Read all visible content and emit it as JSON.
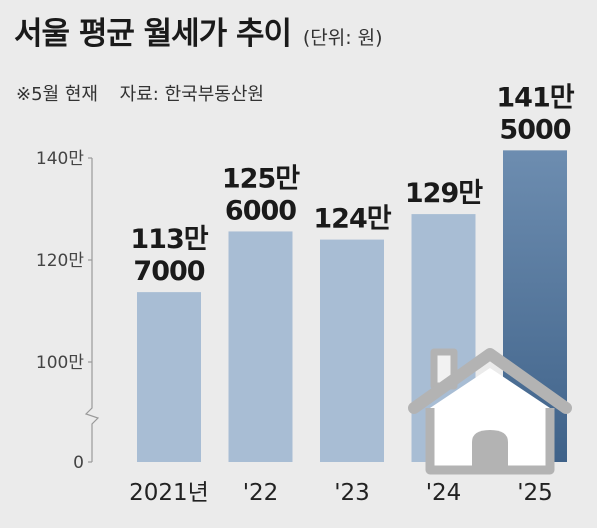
{
  "header": {
    "title": "서울 평균 월세가 추이",
    "unit": "(단위: 원)",
    "note": "※5월 현재",
    "source": "자료: 한국부동산원"
  },
  "chart_data": {
    "type": "bar",
    "categories": [
      "2021년",
      "'22",
      "'23",
      "'24",
      "'25"
    ],
    "values": [
      1137000,
      1256000,
      1240000,
      1290000,
      1415000
    ],
    "value_labels": [
      [
        "113만",
        "7000"
      ],
      [
        "125만",
        "6000"
      ],
      [
        "124만"
      ],
      [
        "129만"
      ],
      [
        "141만",
        "5000"
      ]
    ],
    "yticks": [
      {
        "value": 0,
        "label": "0"
      },
      {
        "value": 1000000,
        "label": "100만"
      },
      {
        "value": 1200000,
        "label": "120만"
      },
      {
        "value": 1400000,
        "label": "140만"
      }
    ],
    "axis_break": true,
    "colors": {
      "bar": "#a8bdd4",
      "bar_highlight_top": "#6d8db0",
      "bar_highlight_bottom": "#3f6289",
      "axis": "#999999",
      "house": "#b3b3b3"
    },
    "icon": "house-icon"
  }
}
